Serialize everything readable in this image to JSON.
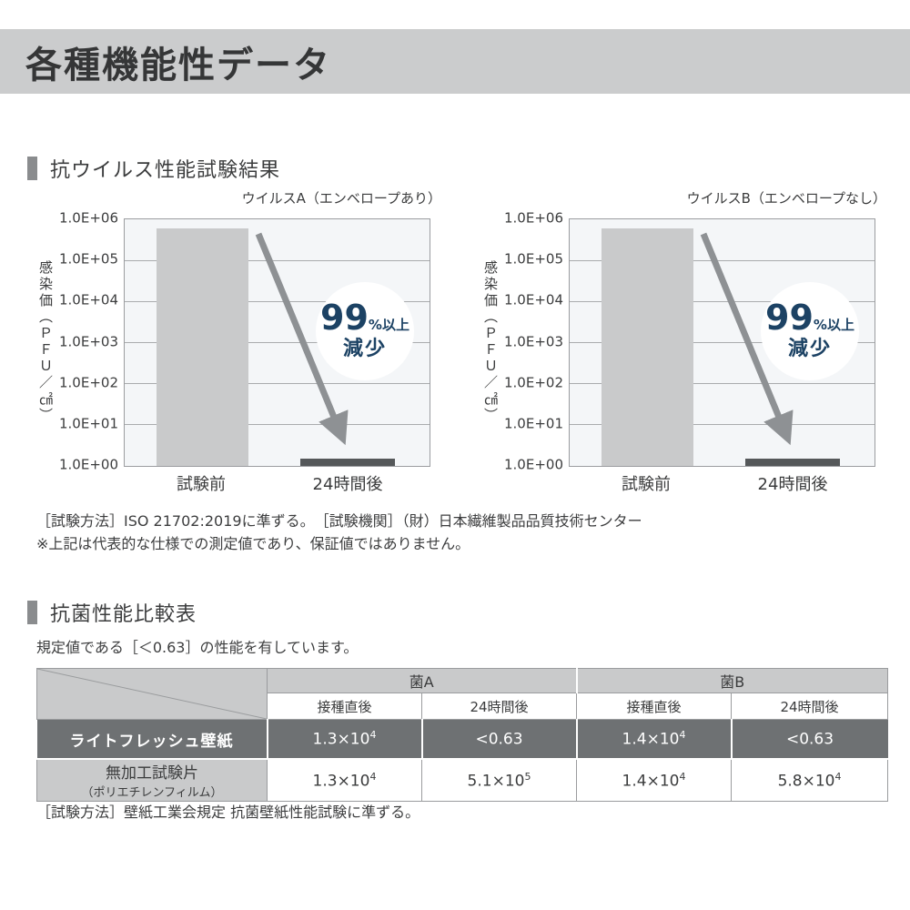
{
  "page": {
    "title": "各種機能性データ"
  },
  "colors": {
    "banner_bg": "#cbcccd",
    "heading_marker": "#8a8c8e",
    "text_dark": "#3b3c3d",
    "plot_bg": "#f4f6f8",
    "grid_line": "#a9abad",
    "bar_before": "#c9cacb",
    "bar_after": "#55585a",
    "arrow": "#8e9194",
    "annotation_navy": "#1c4264",
    "table_header_bg": "#c9cacb",
    "table_dark_row_bg": "#6e7173"
  },
  "virus_section": {
    "heading": "抗ウイルス性能試験結果",
    "note1": "［試験方法］ISO 21702:2019に準ずる。　［試験機関］（財）日本繊維製品品質技術センター",
    "note2": "※上記は代表的な仕様での測定値であり、保証値ではありません。"
  },
  "chart_data": [
    {
      "type": "bar",
      "title": "ウイルスA（エンベロープあり）",
      "ylabel": "感染価（ＰＦＵ／㎠）",
      "xlabel": "",
      "categories": [
        "試験前",
        "24時間後"
      ],
      "values": [
        600000,
        1.5
      ],
      "yscale": "log",
      "ylim": [
        1,
        1000000
      ],
      "yticks": [
        "1.0E+06",
        "1.0E+05",
        "1.0E+04",
        "1.0E+03",
        "1.0E+02",
        "1.0E+01",
        "1.0E+00"
      ],
      "grid": true,
      "legend": "none",
      "annotation": {
        "value": "99",
        "suffix": "%以上",
        "line2": "減少"
      }
    },
    {
      "type": "bar",
      "title": "ウイルスB（エンベロープなし）",
      "ylabel": "感染価（ＰＦＵ／㎠）",
      "xlabel": "",
      "categories": [
        "試験前",
        "24時間後"
      ],
      "values": [
        600000,
        1.5
      ],
      "yscale": "log",
      "ylim": [
        1,
        1000000
      ],
      "yticks": [
        "1.0E+06",
        "1.0E+05",
        "1.0E+04",
        "1.0E+03",
        "1.0E+02",
        "1.0E+01",
        "1.0E+00"
      ],
      "grid": true,
      "legend": "none",
      "annotation": {
        "value": "99",
        "suffix": "%以上",
        "line2": "減少"
      }
    }
  ],
  "bact_section": {
    "heading": "抗菌性能比較表",
    "intro": "規定値である［＜0.63］の性能を有しています。",
    "footnote": "［試験方法］壁紙工業会規定 抗菌壁紙性能試験に準ずる。"
  },
  "table": {
    "col_groups": [
      "菌A",
      "菌B"
    ],
    "sub_headers": [
      "接種直後",
      "24時間後",
      "接種直後",
      "24時間後"
    ],
    "rows": [
      {
        "label": "ライトフレッシュ壁紙",
        "label_sub": "",
        "values": [
          {
            "base": "1.3×10",
            "sup": "4"
          },
          {
            "base": "<0.63",
            "sup": ""
          },
          {
            "base": "1.4×10",
            "sup": "4"
          },
          {
            "base": "<0.63",
            "sup": ""
          }
        ]
      },
      {
        "label": "無加工試験片",
        "label_sub": "（ポリエチレンフィルム）",
        "values": [
          {
            "base": "1.3×10",
            "sup": "4"
          },
          {
            "base": "5.1×10",
            "sup": "5"
          },
          {
            "base": "1.4×10",
            "sup": "4"
          },
          {
            "base": "5.8×10",
            "sup": "4"
          }
        ]
      }
    ]
  }
}
